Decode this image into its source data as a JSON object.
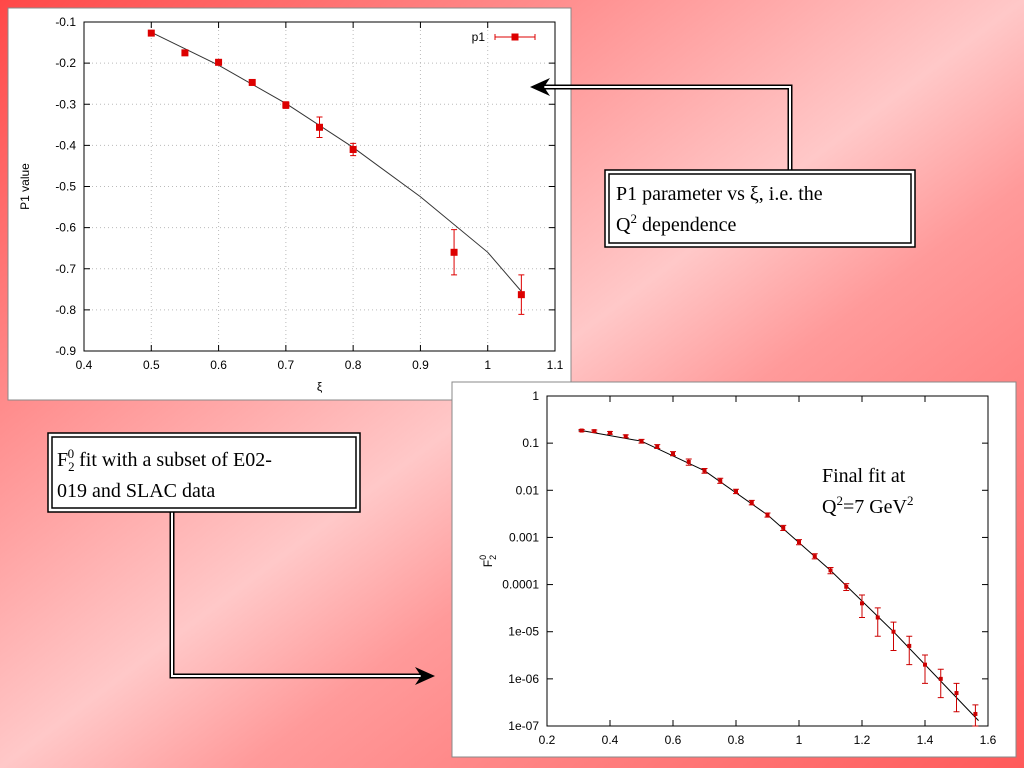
{
  "chart_data": [
    {
      "type": "scatter",
      "xlabel": "ξ",
      "ylabel": "P1 value",
      "xlim": [
        0.4,
        1.1
      ],
      "xticks": [
        0.4,
        0.5,
        0.6,
        0.7,
        0.8,
        0.9,
        1,
        1.1
      ],
      "ylim": [
        -0.9,
        -0.1
      ],
      "yticks": [
        -0.9,
        -0.8,
        -0.7,
        -0.6,
        -0.5,
        -0.4,
        -0.3,
        -0.2,
        -0.1
      ],
      "grid": true,
      "log_y": false,
      "legend": "top-right",
      "series": [
        {
          "name": "p1",
          "color": "#dd0000",
          "x": [
            0.5,
            0.55,
            0.6,
            0.65,
            0.7,
            0.75,
            0.8,
            0.95,
            1.05
          ],
          "values": [
            -0.127,
            -0.175,
            -0.198,
            -0.247,
            -0.302,
            -0.356,
            -0.41,
            -0.66,
            -0.763
          ],
          "errors": [
            0.005,
            0.005,
            0.005,
            0.006,
            0.008,
            0.025,
            0.015,
            0.055,
            0.048
          ]
        }
      ],
      "fit": {
        "color": "#333333",
        "x": [
          0.5,
          0.6,
          0.7,
          0.8,
          0.9,
          1.0,
          1.05
        ],
        "values": [
          -0.125,
          -0.205,
          -0.298,
          -0.405,
          -0.525,
          -0.66,
          -0.755
        ]
      }
    },
    {
      "type": "scatter",
      "ylabel": [
        "F",
        "2",
        "0"
      ],
      "xlim": [
        0.2,
        1.6
      ],
      "xticks": [
        0.2,
        0.4,
        0.6,
        0.8,
        1,
        1.2,
        1.4,
        1.6
      ],
      "ylim": [
        1e-07,
        1
      ],
      "yticks": [
        {
          "value": 1e-07,
          "label": "1e-07"
        },
        {
          "value": 1e-06,
          "label": "1e-06"
        },
        {
          "value": 1e-05,
          "label": "1e-05"
        },
        0.0001,
        0.001,
        0.01,
        0.1,
        1
      ],
      "grid": false,
      "log_y": true,
      "series": [
        {
          "color": "#cc0000",
          "x": [
            0.31,
            0.35,
            0.4,
            0.45,
            0.5,
            0.55,
            0.6,
            0.65,
            0.7,
            0.75,
            0.8,
            0.85,
            0.9,
            0.95,
            1.0,
            1.05,
            1.1,
            1.15,
            1.2,
            1.25,
            1.3,
            1.35,
            1.4,
            1.45,
            1.5,
            1.56
          ],
          "values": [
            0.185,
            0.18,
            0.165,
            0.14,
            0.11,
            0.085,
            0.06,
            0.04,
            0.026,
            0.016,
            0.0095,
            0.0055,
            0.003,
            0.0016,
            0.0008,
            0.0004,
            0.0002,
            9e-05,
            4e-05,
            2e-05,
            1e-05,
            5e-06,
            2e-06,
            1e-06,
            5e-07,
            1.8e-07
          ],
          "errors": [
            0.01,
            0.01,
            0.01,
            0.01,
            0.01,
            0.008,
            0.006,
            0.006,
            0.003,
            0.002,
            0.001,
            0.0006,
            0.0003,
            0.0002,
            0.0001,
            5e-05,
            3e-05,
            1.5e-05,
            2e-05,
            1.2e-05,
            6e-06,
            3e-06,
            1.2e-06,
            6e-07,
            3e-07,
            1e-07
          ]
        }
      ],
      "fit": {
        "color": "#000000",
        "x": [
          0.3,
          0.5,
          0.7,
          0.9,
          1.1,
          1.3,
          1.5,
          1.57
        ],
        "values": [
          0.19,
          0.11,
          0.026,
          0.003,
          0.0002,
          1e-05,
          4e-07,
          1.3e-07
        ]
      },
      "annotation": {
        "line1": "Final fit at",
        "line2": [
          "Q",
          "2",
          "=7 GeV",
          "2"
        ]
      }
    }
  ],
  "notes": {
    "p1_box": {
      "line1": "P1 parameter vs ξ, i.e. the",
      "line2": [
        "Q",
        "2",
        " dependence"
      ]
    },
    "f2_box": {
      "line1": [
        "F",
        "2",
        "0",
        " fit with a subset of E02-"
      ],
      "line2": "019 and SLAC data"
    }
  }
}
